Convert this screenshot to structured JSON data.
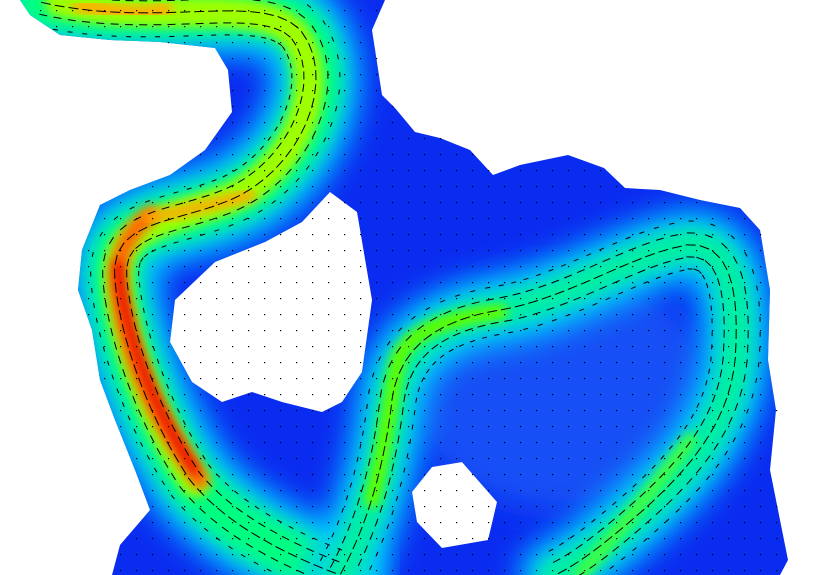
{
  "figure": {
    "kind": "flow-velocity-magnitude-field",
    "background": "#ffffff",
    "domain_color": "#0a2cf0",
    "colormap": [
      "#0a2cf0",
      "#0a7cff",
      "#00d8ff",
      "#00ff7a",
      "#7dff00",
      "#ffd400",
      "#ff5a00",
      "#e60000"
    ],
    "vector_color": "#000000",
    "text": []
  }
}
